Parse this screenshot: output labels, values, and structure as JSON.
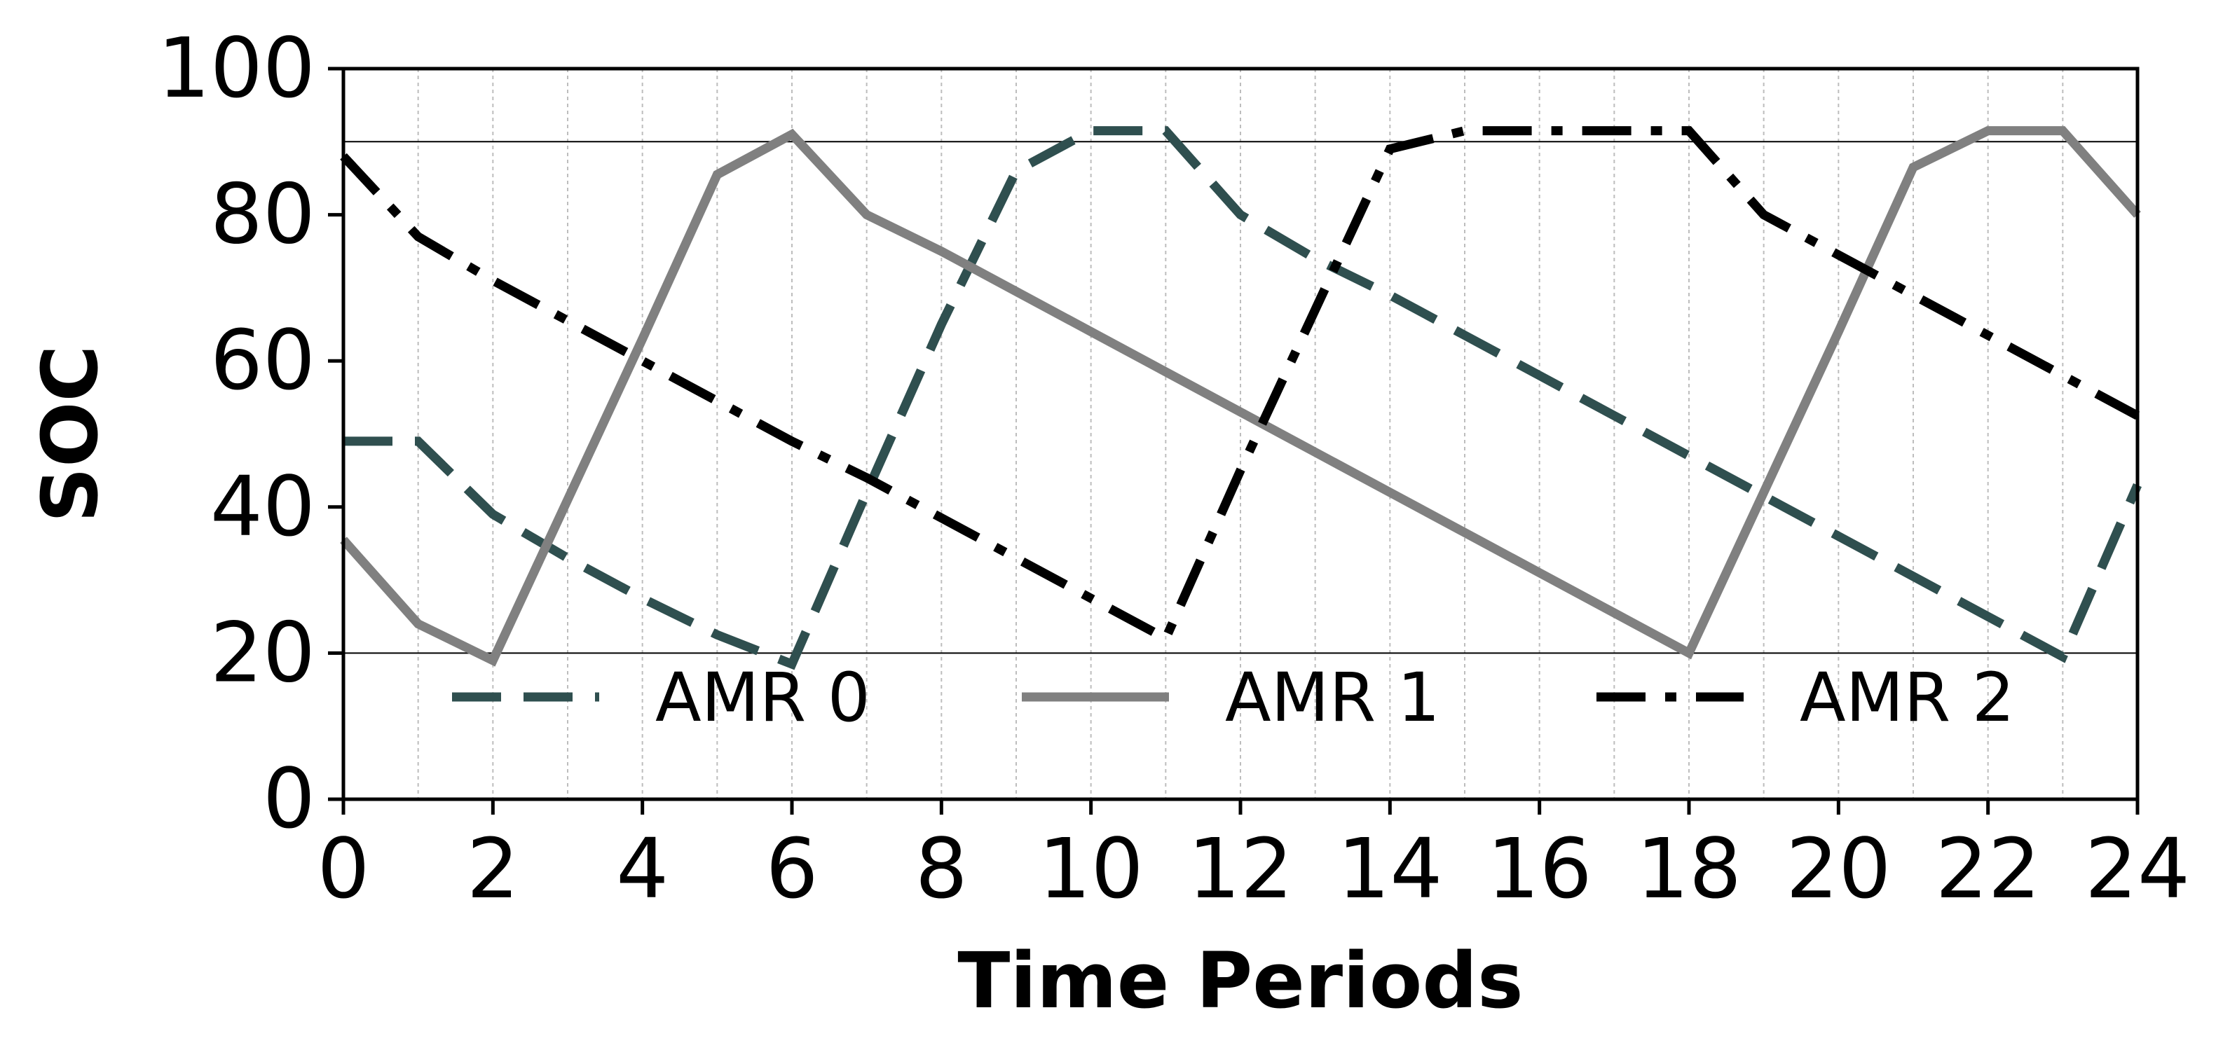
{
  "chart_data": {
    "type": "line",
    "xlabel": "Time Periods",
    "ylabel": "SOC",
    "xlim": [
      0,
      24
    ],
    "ylim": [
      0,
      100
    ],
    "xticks": [
      0,
      2,
      4,
      6,
      8,
      10,
      12,
      14,
      16,
      18,
      20,
      22,
      24
    ],
    "yticks": [
      0,
      20,
      40,
      60,
      80,
      100
    ],
    "grid": "vertical dotted",
    "reference_lines": [
      20,
      90
    ],
    "legend_placement": "lower center",
    "x": [
      0,
      1,
      2,
      3,
      4,
      5,
      6,
      7,
      8,
      9,
      10,
      11,
      12,
      13,
      14,
      15,
      16,
      17,
      18,
      19,
      20,
      21,
      22,
      23,
      24
    ],
    "series": [
      {
        "name": "AMR 0",
        "color": "#2f4f4f",
        "style": "dashed",
        "values": [
          49,
          49,
          39,
          33,
          27.5,
          22.5,
          18.5,
          42,
          65,
          86,
          91.5,
          91.5,
          80,
          74,
          69,
          63.5,
          58,
          52.5,
          47,
          41.5,
          36,
          30.5,
          25,
          19.5,
          43
        ]
      },
      {
        "name": "AMR 1",
        "color": "#808080",
        "style": "solid",
        "values": [
          35.5,
          24,
          19,
          41,
          63,
          85.5,
          91,
          80,
          75,
          69.5,
          64,
          58.5,
          53,
          47.5,
          42,
          36.5,
          31,
          25.5,
          20,
          42,
          64,
          86.5,
          91.5,
          91.5,
          80
        ]
      },
      {
        "name": "AMR 2",
        "color": "#000000",
        "style": "dashdot",
        "values": [
          88,
          77,
          71,
          65.5,
          60,
          54.5,
          49,
          44,
          38.5,
          33,
          27.5,
          22,
          45,
          67,
          89,
          91.5,
          91.5,
          91.5,
          91.5,
          80,
          74.5,
          69,
          63.5,
          58,
          52.5
        ]
      }
    ]
  }
}
